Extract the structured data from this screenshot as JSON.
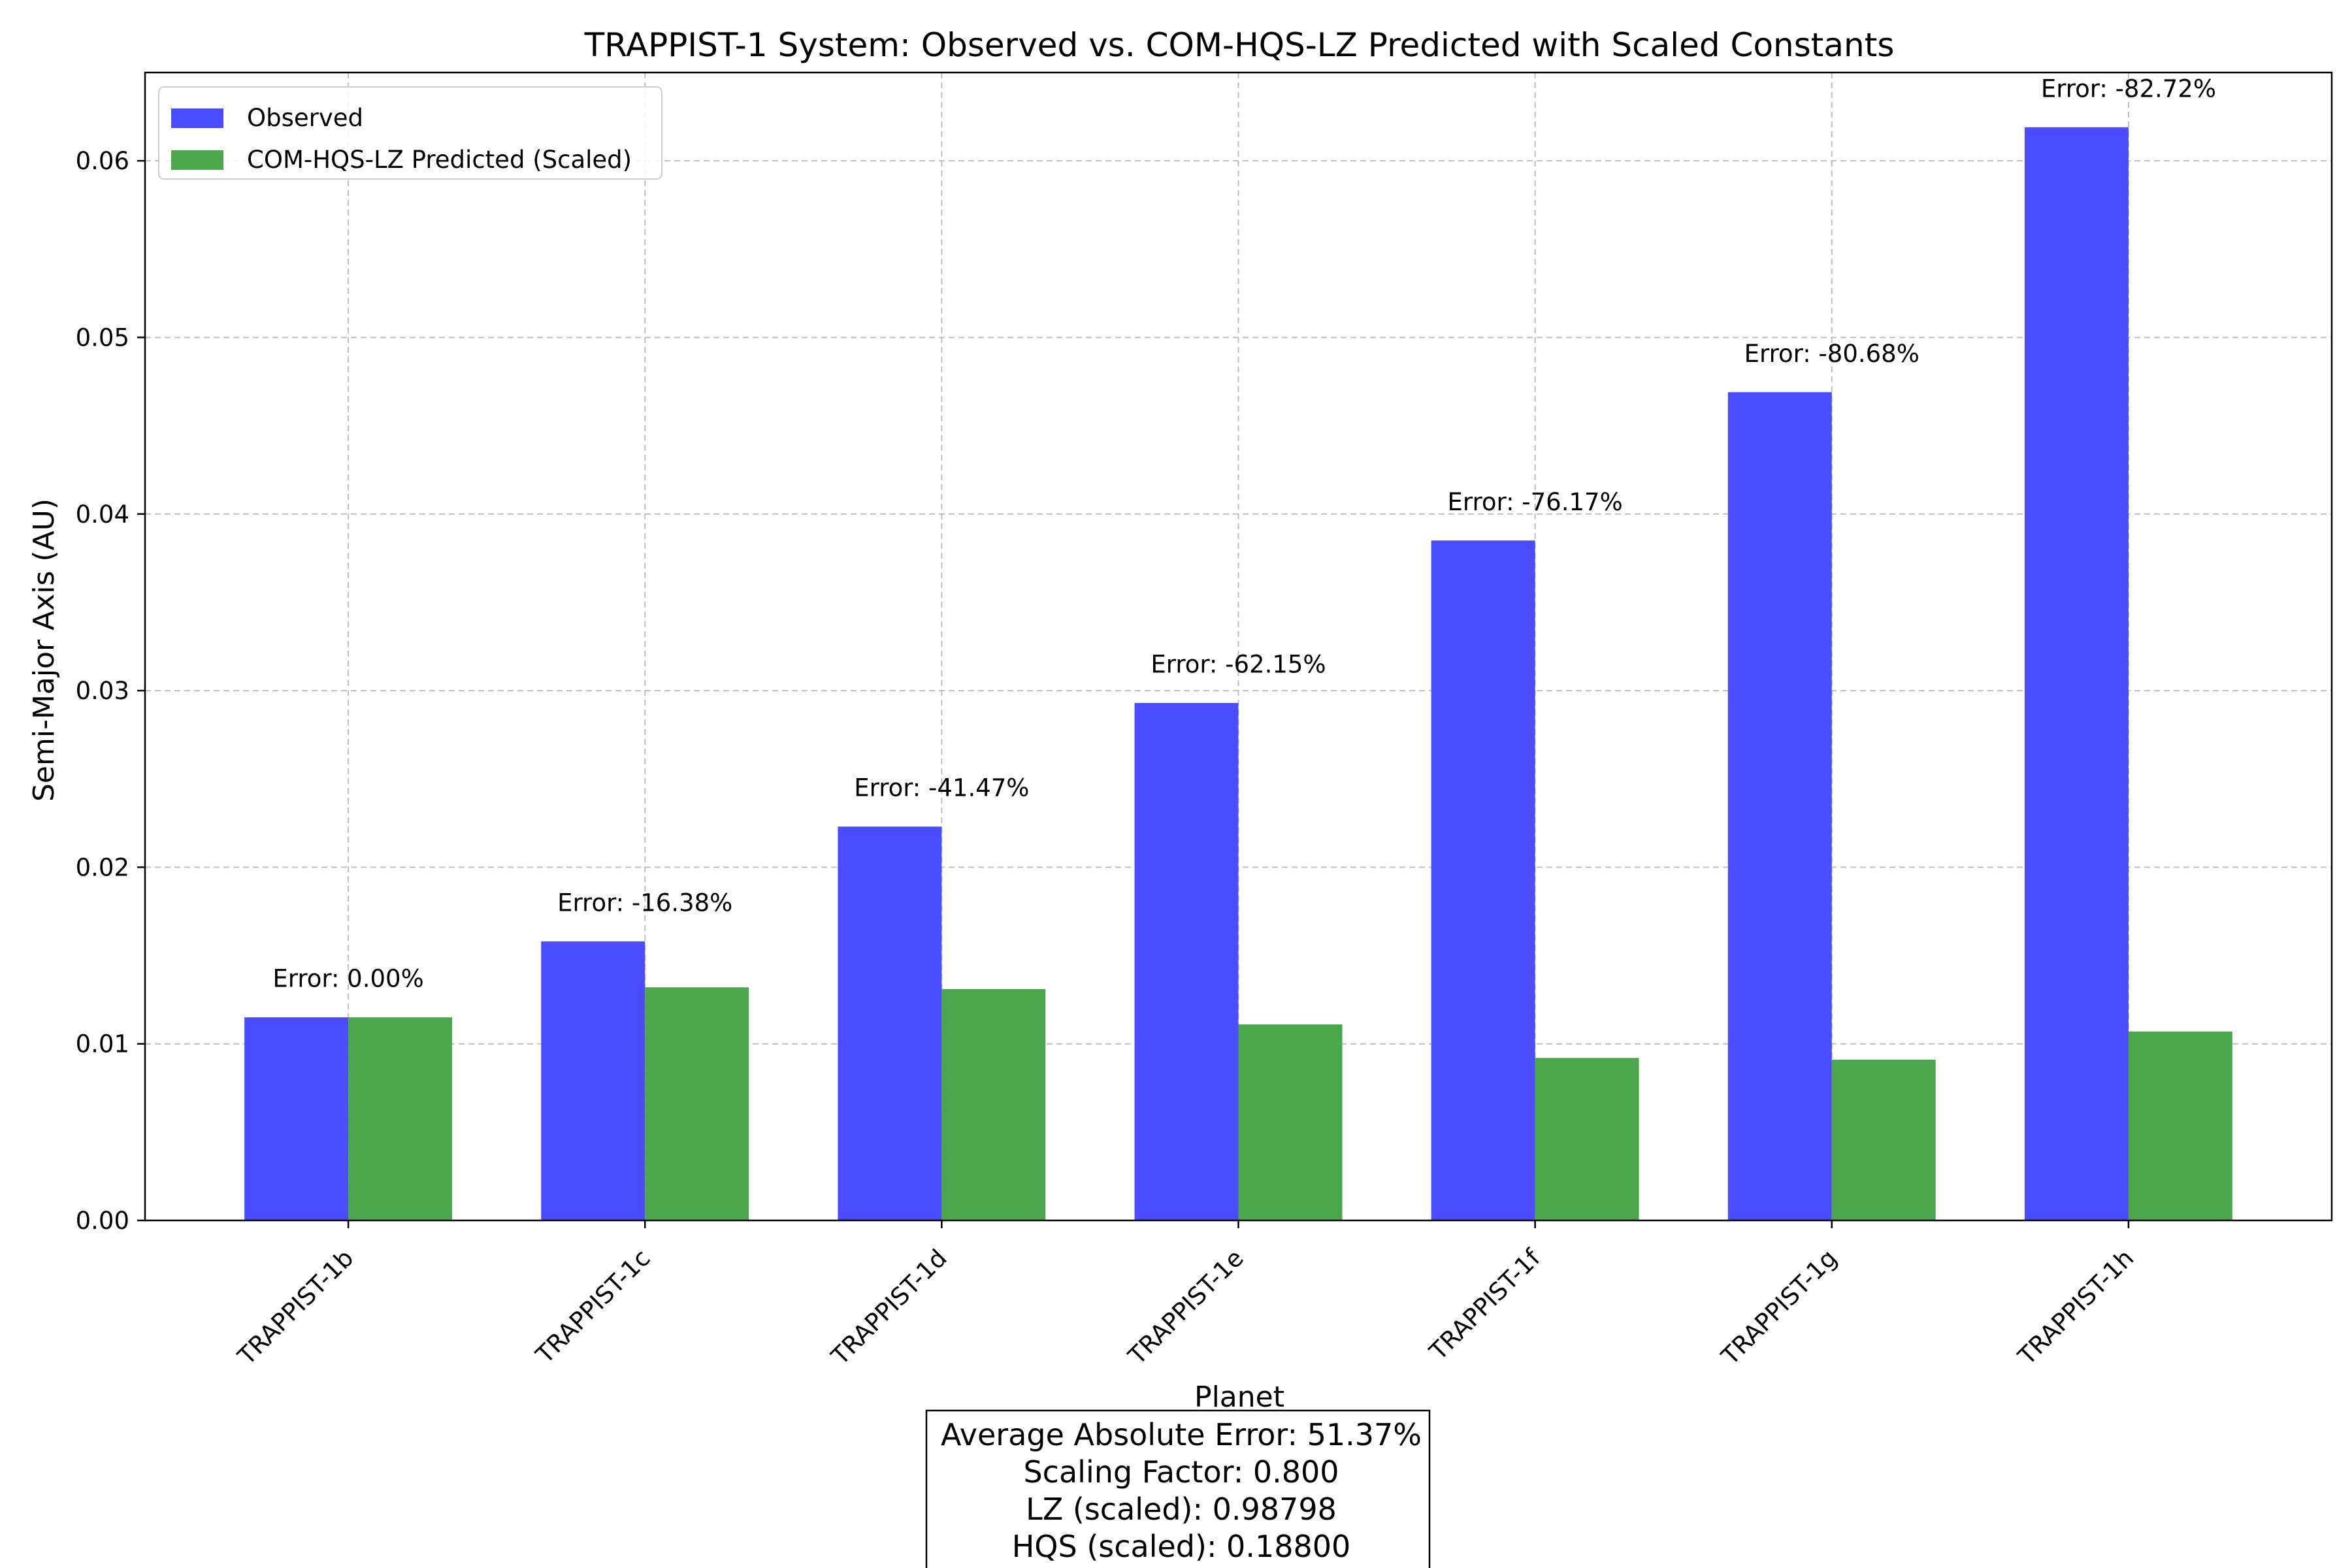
{
  "chart_data": {
    "type": "bar",
    "title": "TRAPPIST-1 System: Observed vs. COM-HQS-LZ Predicted with Scaled Constants",
    "xlabel": "Planet",
    "ylabel": "Semi-Major Axis (AU)",
    "categories": [
      "TRAPPIST-1b",
      "TRAPPIST-1c",
      "TRAPPIST-1d",
      "TRAPPIST-1e",
      "TRAPPIST-1f",
      "TRAPPIST-1g",
      "TRAPPIST-1h"
    ],
    "series": [
      {
        "name": "Observed",
        "color": "#4b4bff",
        "values": [
          0.0115,
          0.0158,
          0.0223,
          0.0293,
          0.0385,
          0.0469,
          0.0619
        ]
      },
      {
        "name": "COM-HQS-LZ Predicted (Scaled)",
        "color": "#4ca64c",
        "values": [
          0.0115,
          0.0132,
          0.0131,
          0.0111,
          0.0092,
          0.0091,
          0.0107
        ]
      }
    ],
    "annotations": [
      "Error: 0.00%",
      "Error: -16.38%",
      "Error: -41.47%",
      "Error: -62.15%",
      "Error: -76.17%",
      "Error: -80.68%",
      "Error: -82.72%"
    ],
    "ylim": [
      0,
      0.065
    ],
    "yticks": [
      "0.00",
      "0.01",
      "0.02",
      "0.03",
      "0.04",
      "0.05",
      "0.06"
    ],
    "grid": true,
    "legend_position": "top-left",
    "info_box": [
      "Average Absolute Error: 51.37%",
      "Scaling Factor: 0.800",
      "LZ (scaled): 0.98798",
      "HQS (scaled): 0.18800"
    ]
  }
}
